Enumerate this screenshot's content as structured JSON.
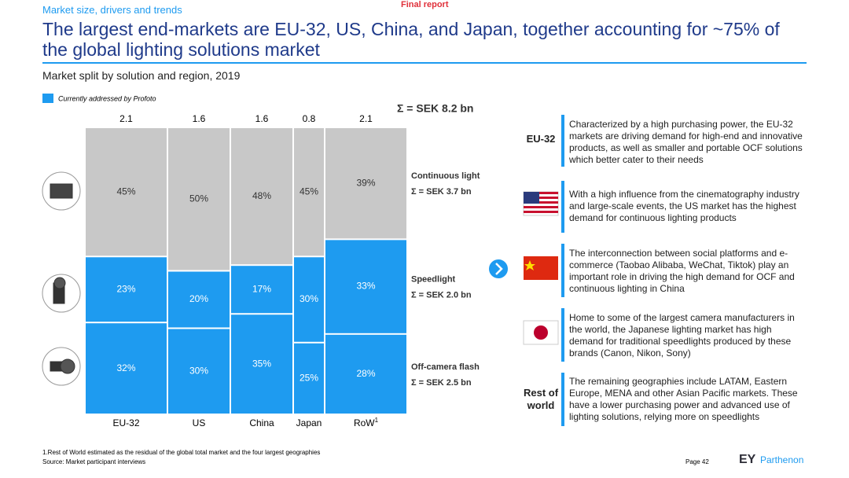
{
  "header": {
    "section": "Market size, drivers and trends",
    "status": "Final report",
    "title": "The largest end-markets are EU-32, US, China, and Japan, together accounting for ~75% of the global lighting solutions market",
    "subtitle": "Market split by solution and region, 2019"
  },
  "chart_data": {
    "type": "marimekko",
    "legend": {
      "label": "Currently addressed by Profoto",
      "color": "#1e9bf0"
    },
    "total_label": "Σ = SEK 8.2 bn",
    "categories": [
      "EU-32",
      "US",
      "China",
      "Japan",
      "RoW"
    ],
    "footnote_marker": "1",
    "widths": [
      2.1,
      1.6,
      1.6,
      0.8,
      2.1
    ],
    "series": [
      {
        "name": "Off-camera flash",
        "sum_label": "Σ = SEK 2.5 bn",
        "color": "#1e9bf0",
        "values": [
          32,
          30,
          35,
          25,
          28
        ],
        "value_labels": [
          "32%",
          "30%",
          "35%",
          "25%",
          "28%"
        ]
      },
      {
        "name": "Speedlight",
        "sum_label": "Σ = SEK 2.0 bn",
        "color": "#1e9bf0",
        "values": [
          23,
          20,
          17,
          30,
          33
        ],
        "value_labels": [
          "23%",
          "20%",
          "17%",
          "30%",
          "33%"
        ]
      },
      {
        "name": "Continuous light",
        "sum_label": "Σ = SEK 3.7 bn",
        "color": "#c8c8c8",
        "values": [
          45,
          50,
          48,
          45,
          39
        ],
        "value_labels": [
          "45%",
          "50%",
          "48%",
          "45%",
          "39%"
        ]
      }
    ]
  },
  "regions": [
    {
      "label": "EU-32",
      "text": "Characterized by a high purchasing power, the EU-32 markets are driving demand for high-end and innovative products, as well as smaller and portable OCF solutions which better cater to their needs"
    },
    {
      "text": "With a high influence from the cinematography industry and large-scale events, the US market has the highest demand for continuous lighting products"
    },
    {
      "text": "The interconnection between social platforms and e-commerce (Taobao Alibaba, WeChat, Tiktok) play an important role in driving the high demand for OCF and continuous lighting in China"
    },
    {
      "text": "Home to some of the largest camera manufacturers in the world, the Japanese lighting market has high demand for traditional speedlights produced by these brands (Canon, Nikon, Sony)"
    },
    {
      "label": "Rest of world",
      "text": "The remaining geographies include LATAM, Eastern Europe, MENA and other Asian Pacific markets. These have a lower purchasing power and advanced use of lighting solutions, relying more on speedlights"
    }
  ],
  "footer": {
    "footnote": "1.Rest of World estimated as the residual of the global total market and the four largest geographies",
    "source": "Source: Market participant interviews",
    "page": "Page 42",
    "brand": "EY",
    "brand_sub": "Parthenon"
  }
}
